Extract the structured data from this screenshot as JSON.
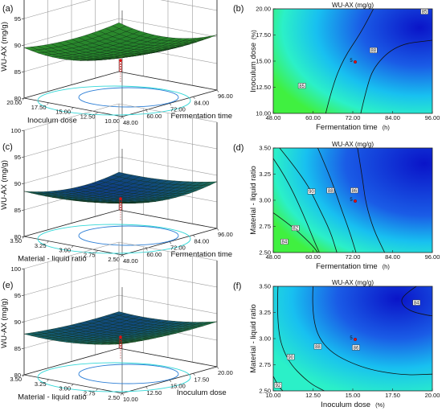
{
  "figure": {
    "panels": [
      "(a)",
      "(b)",
      "(c)",
      "(d)",
      "(e)",
      "(f)"
    ]
  },
  "chart_data": [
    {
      "panel": "(a)",
      "type": "surface",
      "zlabel": "WU-AX (mg/g)",
      "zticks": [
        "80",
        "85",
        "90",
        "95",
        "100"
      ],
      "zlim": [
        80,
        100
      ],
      "xlabel": "Inoculum dose",
      "xticks": [
        "10.00",
        "12.50",
        "15.00",
        "17.50",
        "20.00"
      ],
      "ylabel": "Fermentation time",
      "yticks": [
        "48.00",
        "60.00",
        "72.00",
        "84.00",
        "96.00"
      ],
      "surface_range": [
        85.5,
        92.0
      ],
      "design_point_z": 86.2,
      "surface_color": "green"
    },
    {
      "panel": "(b)",
      "type": "contour",
      "title": "WU-AX (mg/g)",
      "xlabel": "Fermentation time",
      "xunit": "(h)",
      "xlim": [
        48,
        96
      ],
      "xticks": [
        "48.00",
        "60.00",
        "72.00",
        "84.00",
        "96.00"
      ],
      "ylabel": "Inoculum dose",
      "yunit": "(%)",
      "ylim": [
        10,
        20
      ],
      "yticks": [
        "10.00",
        "12.50",
        "15.00",
        "17.50",
        "20.00"
      ],
      "contour_levels": [
        "85",
        "88",
        "85"
      ],
      "design_point": {
        "x": 72,
        "y": 15,
        "label": "5"
      }
    },
    {
      "panel": "(c)",
      "type": "surface",
      "zlabel": "WU-AX (mg/g)",
      "zticks": [
        "80",
        "85",
        "90",
        "95",
        "100"
      ],
      "zlim": [
        80,
        100
      ],
      "xlabel": "Material - liquid ratio",
      "xticks": [
        "2.50",
        "2.75",
        "3.00",
        "3.25",
        "3.50"
      ],
      "ylabel": "Fermentation time",
      "yticks": [
        "48.00",
        "60.00",
        "72.00",
        "84.00",
        "96.00"
      ],
      "surface_range": [
        84.8,
        90.5
      ],
      "design_point_z": 86.2,
      "surface_color": "green-blue"
    },
    {
      "panel": "(d)",
      "type": "contour",
      "title": "WU-AX (mg/g)",
      "xlabel": "Fermentation time",
      "xunit": "(h)",
      "xlim": [
        48,
        96
      ],
      "xticks": [
        "48.00",
        "60.00",
        "72.00",
        "84.00",
        "96.00"
      ],
      "ylabel": "Material - liquid ratio",
      "ylim": [
        2.5,
        3.5
      ],
      "yticks": [
        "2.50",
        "2.75",
        "3.00",
        "3.25",
        "3.50"
      ],
      "contour_levels": [
        "84",
        "82",
        "90",
        "88",
        "86"
      ],
      "design_point": {
        "x": 72,
        "y": 3.0,
        "label": "5"
      }
    },
    {
      "panel": "(e)",
      "type": "surface",
      "zlabel": "WU-AX (mg/g)",
      "zticks": [
        "80",
        "85",
        "90",
        "95",
        "100"
      ],
      "zlim": [
        80,
        100
      ],
      "xlabel": "Material - liquid ratio",
      "xticks": [
        "2.50",
        "2.75",
        "3.00",
        "3.25",
        "3.50"
      ],
      "ylabel": "Inoculum dose",
      "yticks": [
        "10.00",
        "12.50",
        "15.00",
        "17.50",
        "20.00"
      ],
      "surface_range": [
        85.0,
        89.5
      ],
      "design_point_z": 86.2,
      "surface_color": "green-blue"
    },
    {
      "panel": "(f)",
      "type": "contour",
      "title": "WU-AX (mg/g)",
      "xlabel": "Inoculum dose",
      "xunit": "(%)",
      "xlim": [
        10,
        20
      ],
      "xticks": [
        "10.00",
        "12.50",
        "15.00",
        "17.50",
        "20.00"
      ],
      "ylabel": "Material - liquid ratio",
      "ylim": [
        2.5,
        3.5
      ],
      "yticks": [
        "2.50",
        "2.75",
        "3.00",
        "3.25",
        "3.50"
      ],
      "contour_levels": [
        "84",
        "86",
        "88",
        "90",
        "92"
      ],
      "design_point": {
        "x": 15,
        "y": 3.0,
        "label": "5"
      }
    }
  ]
}
